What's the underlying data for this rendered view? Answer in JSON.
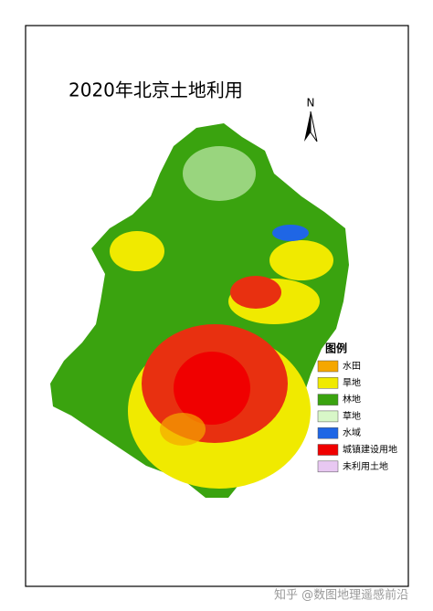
{
  "map": {
    "title": "2020年北京土地利用",
    "north": "N",
    "legend": {
      "title": "图例",
      "items": [
        {
          "name": "水田",
          "color": "#f5a700"
        },
        {
          "name": "旱地",
          "color": "#f0ea00"
        },
        {
          "name": "林地",
          "color": "#3aa30f"
        },
        {
          "name": "草地",
          "color": "#d8f7c8"
        },
        {
          "name": "水域",
          "color": "#1f66e5"
        },
        {
          "name": "城镇建设用地",
          "color": "#f00000"
        },
        {
          "name": "未利用土地",
          "color": "#e8c8f2"
        }
      ]
    },
    "watermark": "知乎 @数图地理遥感前沿"
  }
}
